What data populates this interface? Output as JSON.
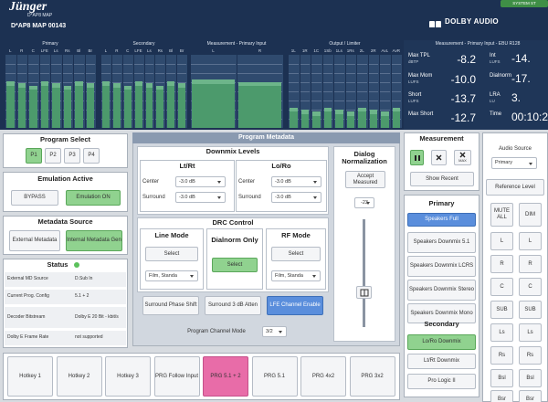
{
  "header": {
    "brand": "Jünger",
    "model": "D*AP8 MAP",
    "device": "D*AP8 MAP 00143",
    "logo": "DOLBY AUDIO",
    "system_button": "SYSTEM ST"
  },
  "meters": [
    {
      "title": "Primary",
      "channels": [
        "L",
        "R",
        "C",
        "LFE",
        "Ls",
        "Rs",
        "Bl",
        "Br"
      ]
    },
    {
      "title": "Secondary",
      "channels": [
        "L",
        "R",
        "C",
        "LFE",
        "Ls",
        "Rs",
        "Bl",
        "Br"
      ]
    },
    {
      "title": "Measurement - Primary Input",
      "channels": [
        "L",
        "R"
      ]
    },
    {
      "title": "Output / Limiter",
      "channels": [
        "1L",
        "1R",
        "1C",
        "1Sb",
        "1Ls",
        "1Rs",
        "2L",
        "2R",
        "AvL",
        "AvR"
      ]
    }
  ],
  "loudness": {
    "title": "Measurement - Primary Input - EBU R128",
    "items": [
      {
        "label": "Max TPL",
        "unit": "dBTP",
        "value": "-8.2"
      },
      {
        "label": "Max Mom",
        "unit": "LUFS",
        "value": "-10.0"
      },
      {
        "label": "Short",
        "unit": "LUFS",
        "value": "-13.7"
      },
      {
        "label": "Max Short",
        "value": "-12.7"
      },
      {
        "label": "Int",
        "unit": "LUFS",
        "value": "-14."
      },
      {
        "label": "Dialnorm",
        "value": "-17."
      },
      {
        "label": "LRA",
        "unit": "LU",
        "value": "3."
      },
      {
        "label": "Time",
        "value": "00:10:2"
      }
    ]
  },
  "program_select": {
    "title": "Program Select",
    "buttons": [
      "P1",
      "P2",
      "P3",
      "P4"
    ]
  },
  "emulation": {
    "title": "Emulation Active",
    "buttons": [
      "BYPASS",
      "Emulation ON"
    ]
  },
  "metadata_source": {
    "title": "Metadata Source",
    "buttons": [
      "External Metadata",
      "Internal Metadata Gen"
    ]
  },
  "status": {
    "title": "Status",
    "rows": [
      [
        "External MD Source",
        "D.Sub In"
      ],
      [
        "Current Prog. Config",
        "5.1 + 2"
      ],
      [
        "Decoder Bitstream",
        "Dolby E 20 Bit - kbit/s"
      ],
      [
        "Dolby E Frame Rate",
        "not supported"
      ]
    ]
  },
  "program_metadata": {
    "title": "Program Metadata",
    "downmix": {
      "title": "Downmix Levels",
      "groups": [
        {
          "title": "Lt/Rt",
          "rows": [
            {
              "label": "Center",
              "value": "-3.0 dB"
            },
            {
              "label": "Surround",
              "value": "-3.0 dB"
            }
          ]
        },
        {
          "title": "Lo/Ro",
          "rows": [
            {
              "label": "Center",
              "value": "-3.0 dB"
            },
            {
              "label": "Surround",
              "value": "-3.0 dB"
            }
          ]
        }
      ]
    },
    "dialnorm": {
      "title": "Dialog Normalization",
      "button": "Accept Measured",
      "value": "-23"
    },
    "drc": {
      "title": "DRC Control",
      "groups": [
        {
          "title": "Line Mode",
          "button": "Select",
          "dropdown": "Film, Standa"
        },
        {
          "title": "Dialnorm Only",
          "button": "Select"
        },
        {
          "title": "RF Mode",
          "button": "Select",
          "dropdown": "Film, Standa"
        }
      ]
    },
    "options": [
      "Surround Phase Shift",
      "Surround 3 dB Atten",
      "LFE Channel Enable"
    ],
    "channel_mode": {
      "label": "Program Channel Mode",
      "value": "3/2"
    }
  },
  "measurement": {
    "title": "Measurement",
    "max_label": "MAX",
    "show_recent": "Show Recent"
  },
  "monitoring": {
    "primary_title": "Primary",
    "primary": [
      "Speakers Full",
      "Speakers Downmix 5.1",
      "Speakers Downmix LCRS",
      "Speakers Downmix Stereo",
      "Speakers Downmix Mono"
    ],
    "secondary_title": "Secondary",
    "secondary": [
      "Lo/Ro Downmix",
      "Lt/Rt Downmix",
      "Pro Logic II"
    ]
  },
  "speakers": {
    "audio_source_label": "Audio Source",
    "audio_source": "Primary",
    "reference_level": "Reference Level",
    "buttons": [
      [
        "MUTE ALL",
        "DIM"
      ],
      [
        "L",
        "L"
      ],
      [
        "R",
        "R"
      ],
      [
        "C",
        "C"
      ],
      [
        "SUB",
        "SUB"
      ],
      [
        "Ls",
        "Ls"
      ],
      [
        "Rs",
        "Rs"
      ],
      [
        "Bsl",
        "Bsl"
      ],
      [
        "Bsr",
        "Bsr"
      ]
    ]
  },
  "hotkeys": [
    "Hotkey 1",
    "Hotkey 2",
    "Hotkey 3",
    "PRG Follow Input",
    "PRG 5.1 + 2",
    "PRG 5.1",
    "PRG 4x2",
    "PRG 3x2"
  ]
}
